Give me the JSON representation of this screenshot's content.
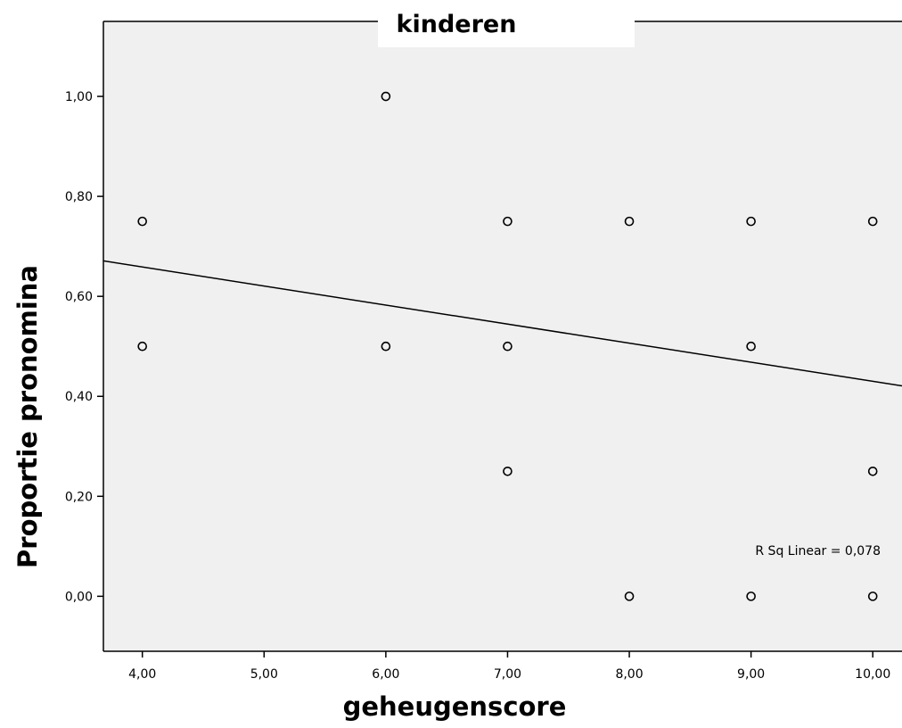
{
  "chart_data": {
    "type": "scatter",
    "title": "kinderen",
    "xlabel": "geheugenscore",
    "ylabel": "Proportie pronomina",
    "xlim": [
      3.68,
      10.24
    ],
    "ylim": [
      -0.11,
      1.15
    ],
    "xticks": [
      4,
      5,
      6,
      7,
      8,
      9,
      10
    ],
    "xtick_labels": [
      "4,00",
      "5,00",
      "6,00",
      "7,00",
      "8,00",
      "9,00",
      "10,00"
    ],
    "yticks": [
      0,
      0.2,
      0.4,
      0.6,
      0.8,
      1.0
    ],
    "ytick_labels": [
      "0,00",
      "0,20",
      "0,40",
      "0,60",
      "0,80",
      "1,00"
    ],
    "grid": false,
    "points": [
      {
        "x": 4,
        "y": 0.75
      },
      {
        "x": 4,
        "y": 0.5
      },
      {
        "x": 6,
        "y": 1.0
      },
      {
        "x": 6,
        "y": 0.5
      },
      {
        "x": 7,
        "y": 0.75
      },
      {
        "x": 7,
        "y": 0.5
      },
      {
        "x": 7,
        "y": 0.25
      },
      {
        "x": 8,
        "y": 0.75
      },
      {
        "x": 8,
        "y": 0.0
      },
      {
        "x": 9,
        "y": 0.75
      },
      {
        "x": 9,
        "y": 0.5
      },
      {
        "x": 9,
        "y": 0.0
      },
      {
        "x": 10,
        "y": 0.75
      },
      {
        "x": 10,
        "y": 0.25
      },
      {
        "x": 10,
        "y": 0.0
      }
    ],
    "fit_line": {
      "type": "linear",
      "x": [
        3.68,
        10.24
      ],
      "y": [
        0.671,
        0.421
      ]
    },
    "annotation": "R Sq Linear = 0,078",
    "colors": {
      "background": "#f0f0f0",
      "marker_stroke": "#000000",
      "line": "#000000"
    }
  }
}
